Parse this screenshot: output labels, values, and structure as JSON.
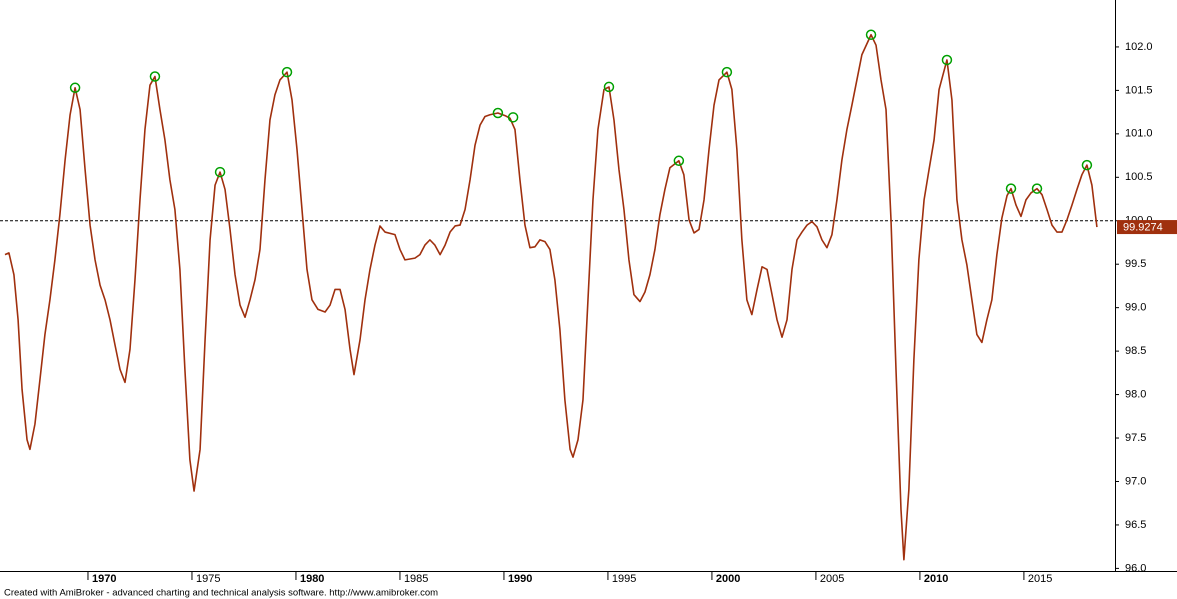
{
  "chart_data": {
    "type": "line",
    "footer": "Created with AmiBroker - advanced charting and technical analysis software. http://www.amibroker.com",
    "color": "#a0300e",
    "x": [
      1966.01,
      1966.2,
      1966.44,
      1966.64,
      1966.83,
      1967.07,
      1967.21,
      1967.45,
      1967.69,
      1967.93,
      1968.17,
      1968.41,
      1968.65,
      1968.9,
      1969.14,
      1969.38,
      1969.62,
      1969.86,
      1970.1,
      1970.34,
      1970.58,
      1970.82,
      1971.06,
      1971.3,
      1971.54,
      1971.78,
      1972.02,
      1972.26,
      1972.5,
      1972.74,
      1972.98,
      1973.22,
      1973.46,
      1973.7,
      1973.94,
      1974.18,
      1974.42,
      1974.66,
      1974.9,
      1975.1,
      1975.39,
      1975.63,
      1975.87,
      1976.11,
      1976.35,
      1976.59,
      1976.83,
      1977.07,
      1977.31,
      1977.55,
      1977.79,
      1978.03,
      1978.27,
      1978.51,
      1978.75,
      1978.99,
      1979.23,
      1979.57,
      1979.81,
      1980.05,
      1980.29,
      1980.53,
      1980.77,
      1981.06,
      1981.4,
      1981.64,
      1981.88,
      1982.12,
      1982.36,
      1982.6,
      1982.79,
      1983.08,
      1983.32,
      1983.56,
      1983.8,
      1984.04,
      1984.28,
      1984.76,
      1985.0,
      1985.24,
      1985.72,
      1985.96,
      1986.2,
      1986.44,
      1986.68,
      1986.93,
      1987.17,
      1987.41,
      1987.65,
      1987.89,
      1988.13,
      1988.37,
      1988.61,
      1988.85,
      1989.09,
      1989.33,
      1989.71,
      1990.05,
      1990.29,
      1990.53,
      1990.77,
      1991.01,
      1991.25,
      1991.49,
      1991.73,
      1991.97,
      1992.21,
      1992.45,
      1992.69,
      1992.93,
      1993.18,
      1993.32,
      1993.56,
      1993.8,
      1994.04,
      1994.28,
      1994.52,
      1994.81,
      1995.05,
      1995.29,
      1995.53,
      1995.77,
      1996.01,
      1996.25,
      1996.54,
      1996.78,
      1997.02,
      1997.26,
      1997.5,
      1997.74,
      1997.98,
      1998.41,
      1998.65,
      1998.9,
      1999.14,
      1999.38,
      1999.62,
      1999.86,
      2000.1,
      2000.34,
      2000.72,
      2000.96,
      2001.2,
      2001.44,
      2001.68,
      2001.92,
      2002.17,
      2002.41,
      2002.65,
      2002.89,
      2003.13,
      2003.37,
      2003.61,
      2003.85,
      2004.09,
      2004.33,
      2004.57,
      2004.81,
      2005.05,
      2005.29,
      2005.53,
      2005.77,
      2006.01,
      2006.25,
      2006.49,
      2006.73,
      2006.97,
      2007.21,
      2007.65,
      2007.89,
      2008.13,
      2008.37,
      2008.61,
      2008.85,
      2009.09,
      2009.23,
      2009.47,
      2009.71,
      2009.95,
      2010.2,
      2010.44,
      2010.68,
      2010.92,
      2011.3,
      2011.54,
      2011.78,
      2012.02,
      2012.26,
      2012.5,
      2012.74,
      2012.98,
      2013.22,
      2013.46,
      2013.7,
      2013.94,
      2014.19,
      2014.38,
      2014.62,
      2014.86,
      2015.1,
      2015.34,
      2015.63,
      2015.87,
      2016.11,
      2016.35,
      2016.59,
      2016.83,
      2017.07,
      2017.31,
      2017.55,
      2017.79,
      2018.03,
      2018.27,
      2018.51
    ],
    "values": [
      99.61,
      99.63,
      99.38,
      98.86,
      98.06,
      97.48,
      97.37,
      97.66,
      98.17,
      98.69,
      99.09,
      99.55,
      100.07,
      100.7,
      101.22,
      101.53,
      101.28,
      100.59,
      99.95,
      99.55,
      99.26,
      99.09,
      98.86,
      98.57,
      98.29,
      98.14,
      98.52,
      99.32,
      100.24,
      101.05,
      101.56,
      101.66,
      101.28,
      100.93,
      100.47,
      100.13,
      99.44,
      98.29,
      97.25,
      96.89,
      97.37,
      98.63,
      99.78,
      100.41,
      100.56,
      100.36,
      99.9,
      99.38,
      99.03,
      98.89,
      99.09,
      99.32,
      99.67,
      100.47,
      101.16,
      101.45,
      101.62,
      101.71,
      101.39,
      100.82,
      100.13,
      99.44,
      99.09,
      98.98,
      98.95,
      99.03,
      99.21,
      99.21,
      98.98,
      98.52,
      98.23,
      98.63,
      99.09,
      99.44,
      99.72,
      99.94,
      99.87,
      99.84,
      99.67,
      99.55,
      99.57,
      99.61,
      99.72,
      99.78,
      99.72,
      99.61,
      99.72,
      99.87,
      99.94,
      99.95,
      100.13,
      100.47,
      100.87,
      101.1,
      101.2,
      101.22,
      101.24,
      101.21,
      101.18,
      101.05,
      100.47,
      99.95,
      99.69,
      99.7,
      99.78,
      99.76,
      99.67,
      99.32,
      98.75,
      97.94,
      97.37,
      97.28,
      97.48,
      97.94,
      99.09,
      100.24,
      101.05,
      101.51,
      101.54,
      101.16,
      100.59,
      100.13,
      99.55,
      99.15,
      99.07,
      99.18,
      99.38,
      99.67,
      100.07,
      100.36,
      100.61,
      100.69,
      100.53,
      100.01,
      99.86,
      99.9,
      100.24,
      100.82,
      101.33,
      101.62,
      101.71,
      101.51,
      100.82,
      99.78,
      99.09,
      98.92,
      99.21,
      99.47,
      99.44,
      99.15,
      98.86,
      98.66,
      98.86,
      99.44,
      99.78,
      99.87,
      99.95,
      99.99,
      99.93,
      99.78,
      99.69,
      99.84,
      100.24,
      100.7,
      101.05,
      101.33,
      101.62,
      101.91,
      102.14,
      102.02,
      101.62,
      101.28,
      100.01,
      98.29,
      96.68,
      96.1,
      96.91,
      98.4,
      99.55,
      100.24,
      100.59,
      100.93,
      101.51,
      101.85,
      101.39,
      100.24,
      99.78,
      99.49,
      99.09,
      98.69,
      98.6,
      98.86,
      99.09,
      99.61,
      100.03,
      100.29,
      100.37,
      100.18,
      100.05,
      100.24,
      100.32,
      100.37,
      100.3,
      100.13,
      99.95,
      99.87,
      99.87,
      100.01,
      100.18,
      100.36,
      100.53,
      100.64,
      100.41,
      99.9274
    ],
    "markers": {
      "color": "#00a000",
      "x": [
        1969.38,
        1973.22,
        1976.35,
        1979.57,
        1989.71,
        1990.44,
        1995.05,
        1998.41,
        2000.72,
        2007.65,
        2011.3,
        2014.38,
        2015.63,
        2018.03
      ],
      "values": [
        101.53,
        101.66,
        100.56,
        101.71,
        101.24,
        101.19,
        101.54,
        100.69,
        101.71,
        102.14,
        101.85,
        100.37,
        100.37,
        100.64
      ]
    },
    "reference_line": 100,
    "xlim": [
      1965.77,
      2019.38
    ],
    "xticks": [
      1970,
      1975,
      1980,
      1985,
      1990,
      1995,
      2000,
      2005,
      2010,
      2015
    ],
    "ylim": [
      95.97,
      102.54
    ],
    "yticks": [
      {
        "value": 96,
        "label": "96.0"
      },
      {
        "value": 96.5,
        "label": "96.5"
      },
      {
        "value": 97,
        "label": "97.0"
      },
      {
        "value": 97.5,
        "label": "97.5"
      },
      {
        "value": 98,
        "label": "98.0"
      },
      {
        "value": 98.5,
        "label": "98.5"
      },
      {
        "value": 99,
        "label": "99.0"
      },
      {
        "value": 99.5,
        "label": "99.5"
      },
      {
        "value": 100,
        "label": "100.0"
      },
      {
        "value": 100.5,
        "label": "100.5"
      },
      {
        "value": 101,
        "label": "101.0"
      },
      {
        "value": 101.5,
        "label": "101.5"
      },
      {
        "value": 102,
        "label": "102.0"
      }
    ]
  }
}
